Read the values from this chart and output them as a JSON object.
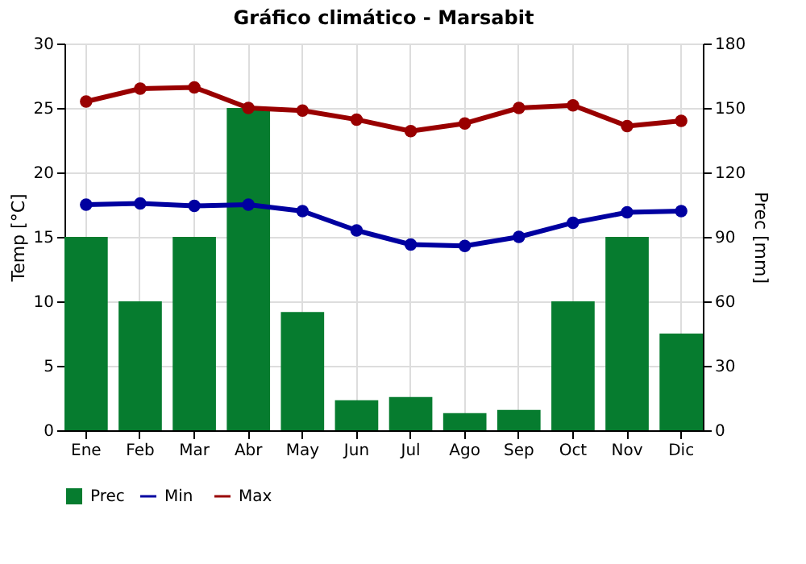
{
  "chart_data": {
    "type": "bar",
    "title": "Gráfico climático - Marsabit",
    "ylabel": "Temp [°C]",
    "y2label": "Prec [mm]",
    "categories": [
      "Ene",
      "Feb",
      "Mar",
      "Abr",
      "May",
      "Jun",
      "Jul",
      "Ago",
      "Sep",
      "Oct",
      "Nov",
      "Dic"
    ],
    "series": [
      {
        "name": "Prec",
        "axis": "y2",
        "color": "#067c2f",
        "values": [
          90,
          60,
          90,
          150,
          55,
          14,
          15.5,
          8,
          9.5,
          60,
          90,
          45
        ]
      },
      {
        "name": "Min",
        "type": "line",
        "color": "#0000a0",
        "values": [
          17.5,
          17.6,
          17.4,
          17.5,
          17.0,
          15.5,
          14.4,
          14.3,
          15.0,
          16.1,
          16.9,
          17.0
        ]
      },
      {
        "name": "Max",
        "type": "line",
        "color": "#990000",
        "values": [
          25.5,
          26.5,
          26.6,
          25.0,
          24.8,
          24.1,
          23.2,
          23.8,
          25.0,
          25.2,
          23.6,
          24.0
        ]
      }
    ],
    "ylim": [
      0,
      30
    ],
    "yticks": [
      0,
      5,
      10,
      15,
      20,
      25,
      30
    ],
    "y2lim": [
      0,
      180
    ],
    "y2ticks": [
      0,
      30,
      60,
      90,
      120,
      150,
      180
    ],
    "grid": true,
    "legend": "bottom left",
    "marker": "circle",
    "line_style": "solid"
  }
}
